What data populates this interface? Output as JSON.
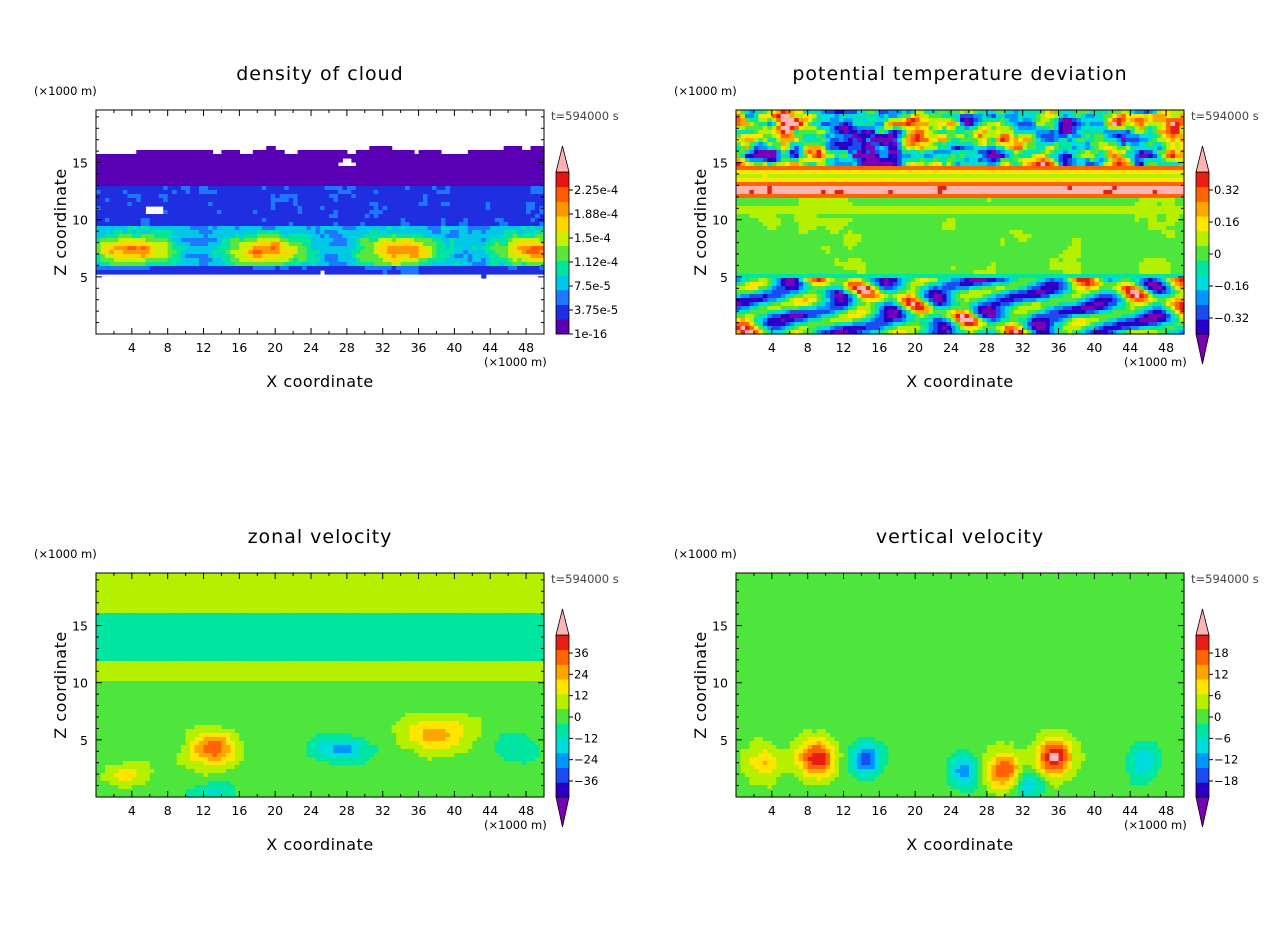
{
  "chart_data": [
    {
      "type": "heatmap",
      "title": "density of cloud",
      "xlabel": "X coordinate",
      "ylabel": "Z coordinate",
      "x_unit": "(×1000 m)",
      "y_unit": "(×1000 m)",
      "time_label": "t=594000 s",
      "xlim": [
        0,
        50
      ],
      "ylim": [
        0,
        19.6
      ],
      "xticks": [
        "4",
        "8",
        "12",
        "16",
        "20",
        "24",
        "28",
        "32",
        "36",
        "40",
        "44",
        "48"
      ],
      "yticks": [
        "5",
        "10",
        "15"
      ],
      "colorbar": {
        "labels": [
          "2.25e-4",
          "1.88e-4",
          "1.5e-4",
          "1.12e-4",
          "7.5e-5",
          "3.75e-5",
          "1e-16"
        ],
        "extend_min": false,
        "extend_max": true
      },
      "colors": [
        "#5a00b4",
        "#1e2ee0",
        "#1e78ff",
        "#00c8e6",
        "#00e6a0",
        "#5ae63c",
        "#c8f000",
        "#ffd700",
        "#ff9600",
        "#ff5a00",
        "#e61414",
        "#ffb0b0"
      ],
      "field": "cloud"
    },
    {
      "type": "heatmap",
      "title": "potential temperature deviation",
      "xlabel": "X coordinate",
      "ylabel": "Z coordinate",
      "x_unit": "(×1000 m)",
      "y_unit": "(×1000 m)",
      "time_label": "t=594000 s",
      "xlim": [
        0,
        50
      ],
      "ylim": [
        0,
        19.6
      ],
      "xticks": [
        "4",
        "8",
        "12",
        "16",
        "20",
        "24",
        "28",
        "32",
        "36",
        "40",
        "44",
        "48"
      ],
      "yticks": [
        "5",
        "10",
        "15"
      ],
      "colorbar": {
        "labels": [
          "0.32",
          "0.16",
          "0",
          "−0.16",
          "−0.32"
        ],
        "extend_min": true,
        "extend_max": true
      },
      "colors": [
        "#7a00b4",
        "#2a00c8",
        "#1a4cf0",
        "#0096ff",
        "#00dcdc",
        "#00e6a0",
        "#4ee63c",
        "#b4f000",
        "#ffe600",
        "#ffa500",
        "#ff6400",
        "#e61e14",
        "#ffb4b4"
      ],
      "field": "theta"
    },
    {
      "type": "heatmap",
      "title": "zonal velocity",
      "xlabel": "X coordinate",
      "ylabel": "Z coordinate",
      "x_unit": "(×1000 m)",
      "y_unit": "(×1000 m)",
      "time_label": "t=594000 s",
      "xlim": [
        0,
        50
      ],
      "ylim": [
        0,
        19.6
      ],
      "xticks": [
        "4",
        "8",
        "12",
        "16",
        "20",
        "24",
        "28",
        "32",
        "36",
        "40",
        "44",
        "48"
      ],
      "yticks": [
        "5",
        "10",
        "15"
      ],
      "colorbar": {
        "labels": [
          "36",
          "24",
          "12",
          "0",
          "−12",
          "−24",
          "−36"
        ],
        "extend_min": true,
        "extend_max": true
      },
      "colors": [
        "#7a00b4",
        "#2a00c8",
        "#1a4cf0",
        "#0096ff",
        "#00dcdc",
        "#00e6a0",
        "#4ee63c",
        "#b4f000",
        "#ffe600",
        "#ffa500",
        "#ff6400",
        "#e61e14",
        "#ffb4b4"
      ],
      "field": "u"
    },
    {
      "type": "heatmap",
      "title": "vertical velocity",
      "xlabel": "X coordinate",
      "ylabel": "Z coordinate",
      "x_unit": "(×1000 m)",
      "y_unit": "(×1000 m)",
      "time_label": "t=594000 s",
      "xlim": [
        0,
        50
      ],
      "ylim": [
        0,
        19.6
      ],
      "xticks": [
        "4",
        "8",
        "12",
        "16",
        "20",
        "24",
        "28",
        "32",
        "36",
        "40",
        "44",
        "48"
      ],
      "yticks": [
        "5",
        "10",
        "15"
      ],
      "colorbar": {
        "labels": [
          "18",
          "12",
          "6",
          "0",
          "−6",
          "−12",
          "−18"
        ],
        "extend_min": true,
        "extend_max": true
      },
      "colors": [
        "#7a00b4",
        "#2a00c8",
        "#1a4cf0",
        "#0096ff",
        "#00dcdc",
        "#00e6a0",
        "#4ee63c",
        "#b4f000",
        "#ffe600",
        "#ffa500",
        "#ff6400",
        "#e61e14",
        "#ffb4b4"
      ],
      "field": "w"
    }
  ]
}
